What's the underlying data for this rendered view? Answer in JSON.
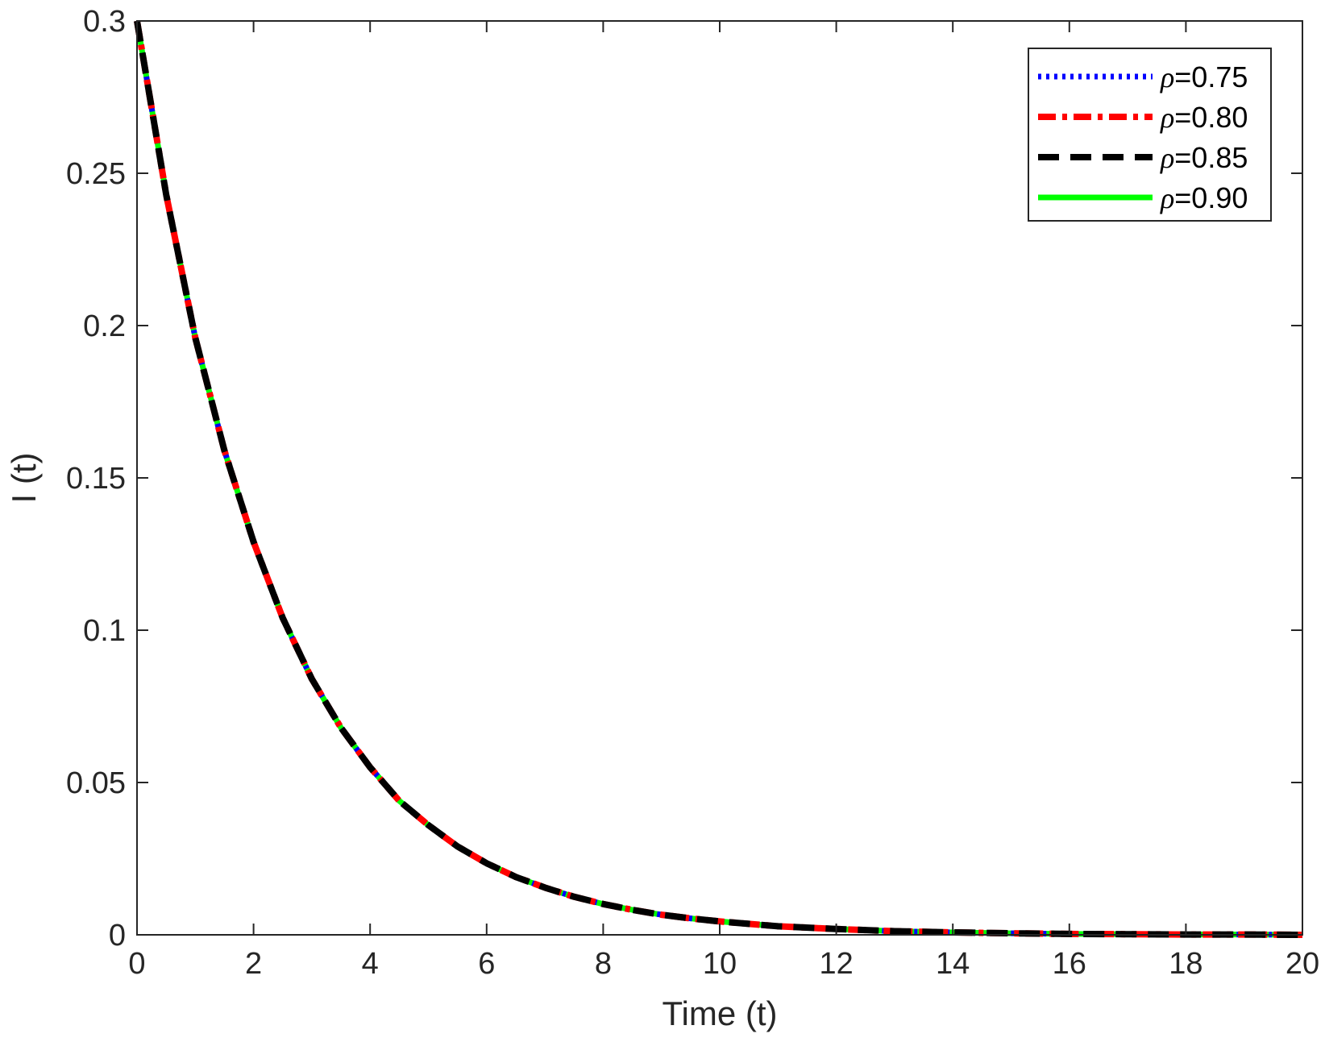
{
  "chart_data": {
    "type": "line",
    "xlabel": "Time (t)",
    "ylabel": "I (t)",
    "xlim": [
      0,
      20
    ],
    "ylim": [
      0,
      0.3
    ],
    "xticks": [
      0,
      2,
      4,
      6,
      8,
      10,
      12,
      14,
      16,
      18,
      20
    ],
    "yticks": [
      0,
      0.05,
      0.1,
      0.15,
      0.2,
      0.25,
      0.3
    ],
    "xtick_labels": [
      "0",
      "2",
      "4",
      "6",
      "8",
      "10",
      "12",
      "14",
      "16",
      "18",
      "20"
    ],
    "ytick_labels": [
      "0",
      "0.05",
      "0.1",
      "0.15",
      "0.2",
      "0.25",
      "0.3"
    ],
    "grid": false,
    "legend_position": "top-right",
    "x": [
      0,
      0.5,
      1,
      1.5,
      2,
      2.5,
      3,
      3.5,
      4,
      4.5,
      5,
      5.5,
      6,
      6.5,
      7,
      7.5,
      8,
      8.5,
      9,
      9.5,
      10,
      11,
      12,
      13,
      14,
      15,
      16,
      17,
      18,
      19,
      20
    ],
    "series": [
      {
        "name": "ρ=0.75",
        "rho": "ρ",
        "value_label": "=0.75",
        "color": "#0000ff",
        "style": "dotted",
        "y": [
          0.3,
          0.243,
          0.196,
          0.159,
          0.129,
          0.104,
          0.084,
          0.068,
          0.055,
          0.044,
          0.036,
          0.029,
          0.0235,
          0.019,
          0.0155,
          0.0125,
          0.0101,
          0.0082,
          0.0066,
          0.0054,
          0.0044,
          0.0028,
          0.0019,
          0.0012,
          0.0008,
          0.0005,
          0.0003,
          0.0002,
          0.0001,
          0.0001,
          0.0
        ]
      },
      {
        "name": "ρ=0.80",
        "rho": "ρ",
        "value_label": "=0.80",
        "color": "#ff0000",
        "style": "dashdot",
        "y": [
          0.3,
          0.243,
          0.196,
          0.159,
          0.129,
          0.104,
          0.084,
          0.068,
          0.055,
          0.044,
          0.036,
          0.029,
          0.0235,
          0.019,
          0.0155,
          0.0125,
          0.0101,
          0.0082,
          0.0066,
          0.0054,
          0.0044,
          0.0028,
          0.0019,
          0.0012,
          0.0008,
          0.0005,
          0.0003,
          0.0002,
          0.0001,
          0.0001,
          0.0
        ]
      },
      {
        "name": "ρ=0.85",
        "rho": "ρ",
        "value_label": "=0.85",
        "color": "#000000",
        "style": "dashed",
        "y": [
          0.3,
          0.243,
          0.196,
          0.159,
          0.129,
          0.104,
          0.084,
          0.068,
          0.055,
          0.044,
          0.036,
          0.029,
          0.0235,
          0.019,
          0.0155,
          0.0125,
          0.0101,
          0.0082,
          0.0066,
          0.0054,
          0.0044,
          0.0028,
          0.0019,
          0.0012,
          0.0008,
          0.0005,
          0.0003,
          0.0002,
          0.0001,
          0.0001,
          0.0
        ]
      },
      {
        "name": "ρ=0.90",
        "rho": "ρ",
        "value_label": "=0.90",
        "color": "#00ff00",
        "style": "solid",
        "y": [
          0.3,
          0.243,
          0.196,
          0.159,
          0.129,
          0.104,
          0.084,
          0.068,
          0.055,
          0.044,
          0.036,
          0.029,
          0.0235,
          0.019,
          0.0155,
          0.0125,
          0.0101,
          0.0082,
          0.0066,
          0.0054,
          0.0044,
          0.0028,
          0.0019,
          0.0012,
          0.0008,
          0.0005,
          0.0003,
          0.0002,
          0.0001,
          0.0001,
          0.0
        ]
      }
    ]
  }
}
